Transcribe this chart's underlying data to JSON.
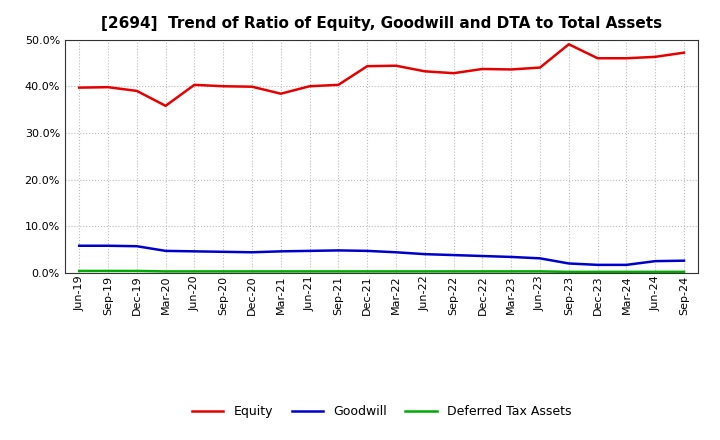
{
  "title": "[2694]  Trend of Ratio of Equity, Goodwill and DTA to Total Assets",
  "labels": [
    "Jun-19",
    "Sep-19",
    "Dec-19",
    "Mar-20",
    "Jun-20",
    "Sep-20",
    "Dec-20",
    "Mar-21",
    "Jun-21",
    "Sep-21",
    "Dec-21",
    "Mar-22",
    "Jun-22",
    "Sep-22",
    "Dec-22",
    "Mar-23",
    "Jun-23",
    "Sep-23",
    "Dec-23",
    "Mar-24",
    "Jun-24",
    "Sep-24"
  ],
  "equity": [
    0.397,
    0.398,
    0.39,
    0.358,
    0.403,
    0.4,
    0.399,
    0.384,
    0.4,
    0.403,
    0.443,
    0.444,
    0.432,
    0.428,
    0.437,
    0.436,
    0.44,
    0.49,
    0.46,
    0.46,
    0.463,
    0.472
  ],
  "goodwill": [
    0.058,
    0.058,
    0.057,
    0.047,
    0.046,
    0.045,
    0.044,
    0.046,
    0.047,
    0.048,
    0.047,
    0.044,
    0.04,
    0.038,
    0.036,
    0.034,
    0.031,
    0.02,
    0.017,
    0.017,
    0.025,
    0.026
  ],
  "dta": [
    0.004,
    0.004,
    0.004,
    0.003,
    0.003,
    0.003,
    0.003,
    0.003,
    0.003,
    0.003,
    0.003,
    0.003,
    0.003,
    0.003,
    0.003,
    0.003,
    0.003,
    0.002,
    0.002,
    0.002,
    0.002,
    0.002
  ],
  "equity_color": "#e60000",
  "goodwill_color": "#0000cc",
  "dta_color": "#00aa00",
  "ylim": [
    0.0,
    0.5
  ],
  "yticks": [
    0.0,
    0.1,
    0.2,
    0.3,
    0.4,
    0.5
  ],
  "bg_color": "#ffffff",
  "grid_color": "#bbbbbb",
  "spine_color": "#333333",
  "legend_labels": [
    "Equity",
    "Goodwill",
    "Deferred Tax Assets"
  ],
  "title_fontsize": 11,
  "tick_fontsize": 8,
  "legend_fontsize": 9
}
